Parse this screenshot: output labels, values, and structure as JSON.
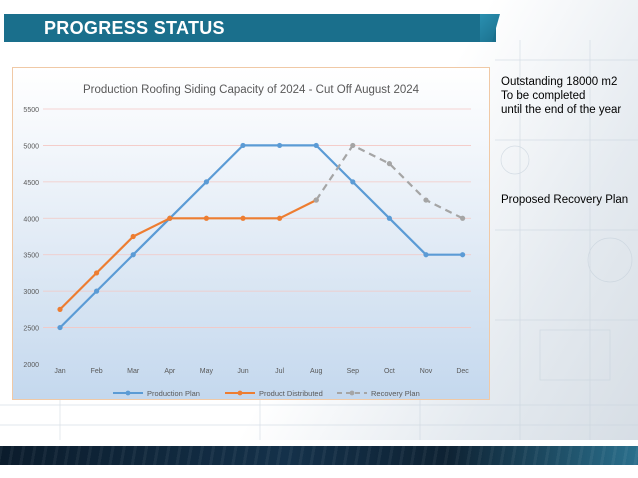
{
  "header": {
    "title": "PROGRESS STATUS"
  },
  "notes": {
    "outstanding": [
      "Outstanding 18000 m2",
      "To be completed",
      "until the end of the year"
    ],
    "recovery": "Proposed Recovery Plan"
  },
  "colors": {
    "header": "#1a6f8c",
    "production_plan": "#5b9bd5",
    "product_distributed": "#ed7d31",
    "recovery_plan": "#a5a5a5",
    "gridline": "#f4c7c3"
  },
  "chart_data": {
    "type": "line",
    "title": "Production Roofing Siding Capacity of 2024 - Cut Off August 2024",
    "categories": [
      "Jan",
      "Feb",
      "Mar",
      "Apr",
      "May",
      "Jun",
      "Jul",
      "Aug",
      "Sep",
      "Oct",
      "Nov",
      "Dec"
    ],
    "ylim": [
      2000,
      5500
    ],
    "yticks": [
      2000,
      2500,
      3000,
      3500,
      4000,
      4500,
      5000,
      5500
    ],
    "grid": true,
    "legend_position": "bottom",
    "series": [
      {
        "name": "Production Plan",
        "style": "solid",
        "color": "#5b9bd5",
        "values": [
          2500,
          3000,
          3500,
          4000,
          4500,
          5000,
          5000,
          5000,
          4500,
          4000,
          3500,
          3500
        ]
      },
      {
        "name": "Product Distributed",
        "style": "solid",
        "color": "#ed7d31",
        "values": [
          2750,
          3250,
          3750,
          4000,
          4000,
          4000,
          4000,
          4250,
          null,
          null,
          null,
          null
        ]
      },
      {
        "name": "Recovery Plan",
        "style": "dashed",
        "color": "#a5a5a5",
        "values": [
          null,
          null,
          null,
          null,
          null,
          null,
          null,
          4250,
          5000,
          4750,
          4250,
          4000
        ]
      }
    ]
  }
}
